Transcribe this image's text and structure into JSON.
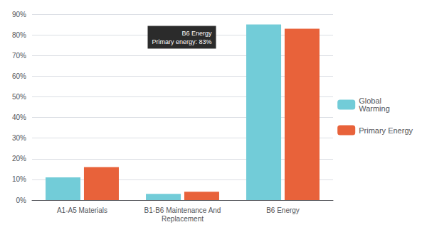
{
  "chart_data": {
    "type": "bar",
    "categories": [
      "A1-A5 Materials",
      "B1-B6 Maintenance And\nReplacement",
      "B6 Energy"
    ],
    "series": [
      {
        "name": "Global\nWarming",
        "color": "#72ccd8",
        "values": [
          11,
          3,
          85
        ]
      },
      {
        "name": "Primary Energy",
        "color": "#e8623a",
        "values": [
          16,
          4,
          83
        ]
      }
    ],
    "ylim": [
      0,
      90
    ],
    "yticks": [
      {
        "value": 0,
        "label": "0%"
      },
      {
        "value": 10,
        "label": "10%"
      },
      {
        "value": 20,
        "label": "20%"
      },
      {
        "value": 30,
        "label": "30%"
      },
      {
        "value": 40,
        "label": "40%"
      },
      {
        "value": 50,
        "label": "50%"
      },
      {
        "value": 60,
        "label": "60%"
      },
      {
        "value": 70,
        "label": "70%"
      },
      {
        "value": 80,
        "label": "80%"
      },
      {
        "value": 90,
        "label": "90%"
      }
    ],
    "grid": true,
    "legend": "right",
    "annotations": [
      {
        "text": "B6 Energy\nPrimary energy: 83%",
        "x": "B6 Energy",
        "y": 85
      }
    ]
  }
}
